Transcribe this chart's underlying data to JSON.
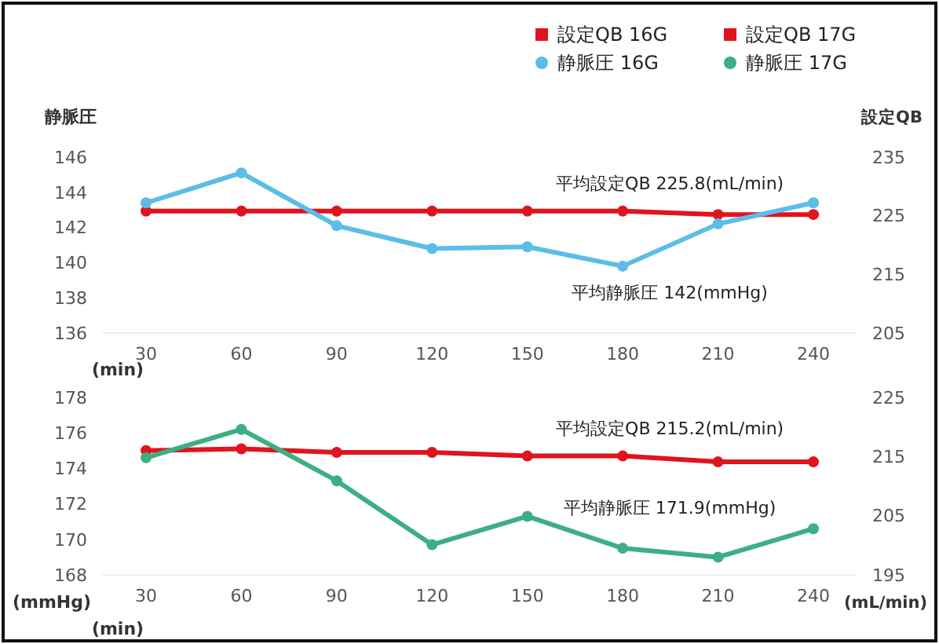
{
  "chart_data": [
    {
      "type": "line",
      "categories": [
        "30",
        "60",
        "90",
        "120",
        "150",
        "180",
        "210",
        "240"
      ],
      "xlabel": "(min)",
      "ylabel": "静脈圧",
      "y2label": "設定QB",
      "ylim": [
        136,
        146
      ],
      "yticks": [
        136,
        138,
        140,
        142,
        144,
        146
      ],
      "y2lim": [
        205,
        235
      ],
      "y2ticks": [
        205,
        215,
        225,
        235
      ],
      "marker": "circle",
      "legend": "top right",
      "annotations": [
        "平均設定QB 225.8(mL/min)",
        "平均静脈圧 142(mmHg)"
      ],
      "series": [
        {
          "name": "設定QB 16G",
          "color": "#e0141e",
          "axis": "y2",
          "values": [
            225.8,
            225.8,
            225.8,
            225.8,
            225.8,
            225.8,
            225.2,
            225.2
          ]
        },
        {
          "name": "静脈圧 16G",
          "color": "#5bbde8",
          "values": [
            143.4,
            145.1,
            142.1,
            140.8,
            140.9,
            139.8,
            142.2,
            143.4
          ]
        }
      ]
    },
    {
      "type": "line",
      "categories": [
        "30",
        "60",
        "90",
        "120",
        "150",
        "180",
        "210",
        "240"
      ],
      "xlabel": "(min)",
      "ylabel": "(mmHg)",
      "y2label": "(mL/min)",
      "ylim": [
        168,
        178
      ],
      "yticks": [
        168,
        170,
        172,
        174,
        176,
        178
      ],
      "y2lim": [
        195,
        225
      ],
      "y2ticks": [
        195,
        205,
        215,
        225
      ],
      "marker": "circle",
      "legend": "top right",
      "annotations": [
        "平均設定QB 215.2(mL/min)",
        "平均静脈圧 171.9(mmHg)"
      ],
      "series": [
        {
          "name": "設定QB 17G",
          "color": "#e0141e",
          "axis": "y2",
          "values": [
            216.0,
            216.3,
            215.7,
            215.7,
            215.1,
            215.1,
            214.1,
            214.1
          ]
        },
        {
          "name": "静脈圧 17G",
          "color": "#3daf82",
          "values": [
            174.6,
            176.2,
            173.3,
            169.7,
            171.3,
            169.5,
            169.0,
            170.6
          ]
        }
      ]
    }
  ]
}
